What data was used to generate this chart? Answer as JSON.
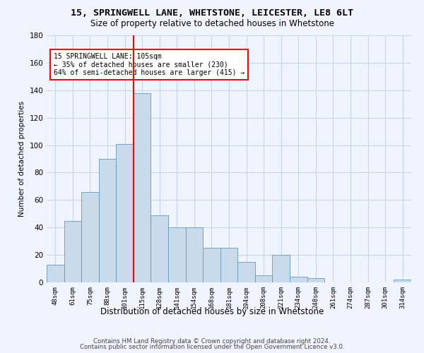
{
  "title1": "15, SPRINGWELL LANE, WHETSTONE, LEICESTER, LE8 6LT",
  "title2": "Size of property relative to detached houses in Whetstone",
  "xlabel": "Distribution of detached houses by size in Whetstone",
  "ylabel": "Number of detached properties",
  "bar_labels": [
    "48sqm",
    "61sqm",
    "75sqm",
    "88sqm",
    "101sqm",
    "115sqm",
    "128sqm",
    "141sqm",
    "154sqm",
    "168sqm",
    "181sqm",
    "194sqm",
    "208sqm",
    "221sqm",
    "234sqm",
    "248sqm",
    "261sqm",
    "274sqm",
    "287sqm",
    "301sqm",
    "314sqm"
  ],
  "bar_values": [
    13,
    45,
    66,
    90,
    101,
    138,
    49,
    40,
    40,
    25,
    25,
    15,
    5,
    20,
    4,
    3,
    0,
    0,
    0,
    0,
    2
  ],
  "bar_color": "#c9daea",
  "bar_edge_color": "#6699bb",
  "vline_x": 4.5,
  "vline_color": "red",
  "annotation_text": "15 SPRINGWELL LANE: 105sqm\n← 35% of detached houses are smaller (230)\n64% of semi-detached houses are larger (415) →",
  "annotation_box_color": "white",
  "annotation_box_edge": "red",
  "ylim": [
    0,
    180
  ],
  "yticks": [
    0,
    20,
    40,
    60,
    80,
    100,
    120,
    140,
    160,
    180
  ],
  "footer1": "Contains HM Land Registry data © Crown copyright and database right 2024.",
  "footer2": "Contains public sector information licensed under the Open Government Licence v3.0.",
  "bg_color": "#f0f4ff",
  "grid_color": "#c8d4e8"
}
